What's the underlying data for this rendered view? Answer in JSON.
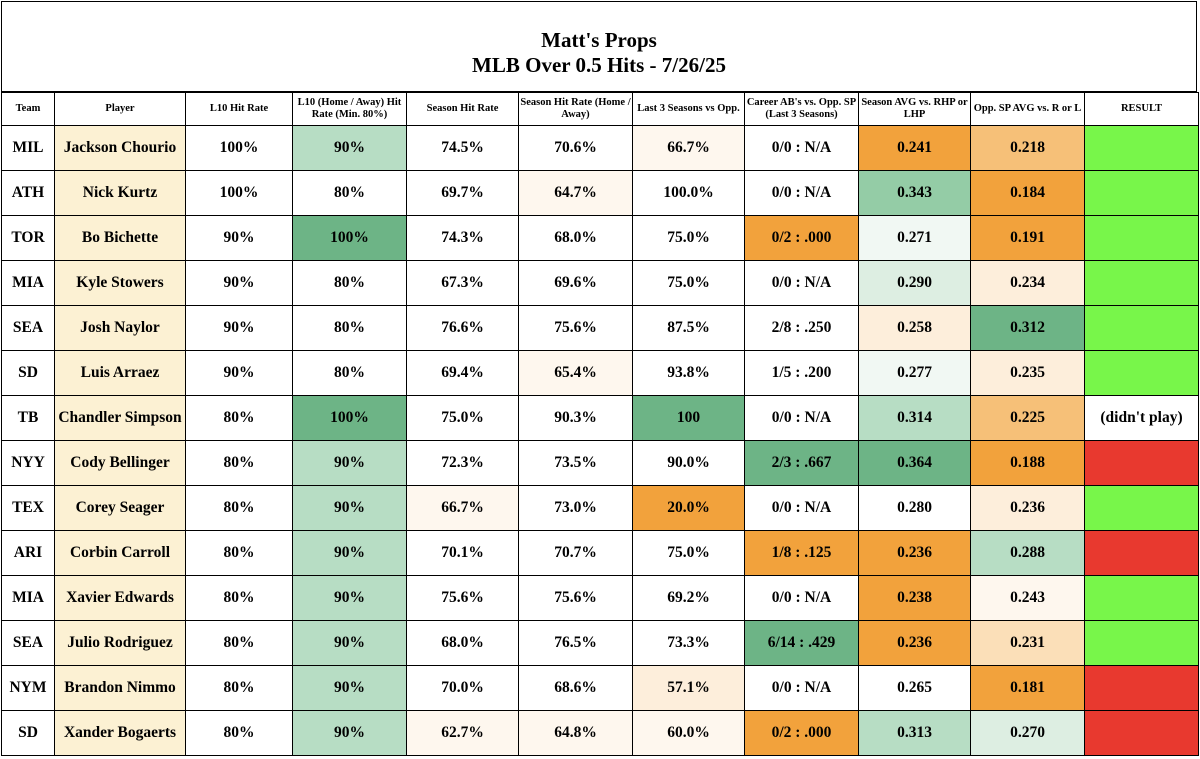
{
  "title": "Matt's Props",
  "subtitle": "MLB Over 0.5 Hits - 7/26/25",
  "columns": [
    "Team",
    "Player",
    "L10 Hit Rate",
    "L10 (Home / Away) Hit Rate (Min. 80%)",
    "Season Hit Rate",
    "Season Hit Rate (Home / Away)",
    "Last 3 Seasons vs Opp.",
    "Career AB's vs. Opp. SP (Last 3 Seasons)",
    "Season AVG vs. RHP or LHP",
    "Opp. SP AVG vs. R or L",
    "RESULT"
  ],
  "colors": {
    "player_bg": "#fcf1d3",
    "hit": "#78f64a",
    "miss": "#e8392f",
    "green_dark": "#6db486",
    "green_mid": "#94cca6",
    "green_light": "#b7ddc4",
    "green_pale": "#ddeee2",
    "green_faint": "#f1f8f3",
    "orange_dark": "#f2a23c",
    "orange_mid": "#f6c078",
    "orange_light": "#fbdfb8",
    "orange_pale": "#fdeedb",
    "orange_faint": "#fef7ee",
    "white": "#ffffff"
  },
  "rows": [
    {
      "team": "MIL",
      "player": "Jackson Chourio",
      "l10": "100%",
      "l10_ha": "90%",
      "season": "74.5%",
      "season_ha": "70.6%",
      "l3": "66.7%",
      "career": "0/0 : N/A",
      "avg_hand": "0.241",
      "opp_sp": "0.218",
      "result": "",
      "bg": [
        "white",
        "player",
        "white",
        "green_light",
        "white",
        "white",
        "orange_faint",
        "white",
        "orange_dark",
        "orange_mid",
        "hit"
      ]
    },
    {
      "team": "ATH",
      "player": "Nick Kurtz",
      "l10": "100%",
      "l10_ha": "80%",
      "season": "69.7%",
      "season_ha": "64.7%",
      "l3": "100.0%",
      "career": "0/0 : N/A",
      "avg_hand": "0.343",
      "opp_sp": "0.184",
      "result": "",
      "bg": [
        "white",
        "player",
        "white",
        "white",
        "white",
        "orange_faint",
        "white",
        "white",
        "green_mid",
        "orange_dark",
        "hit"
      ]
    },
    {
      "team": "TOR",
      "player": "Bo Bichette",
      "l10": "90%",
      "l10_ha": "100%",
      "season": "74.3%",
      "season_ha": "68.0%",
      "l3": "75.0%",
      "career": "0/2 : .000",
      "avg_hand": "0.271",
      "opp_sp": "0.191",
      "result": "",
      "bg": [
        "white",
        "player",
        "white",
        "green_dark",
        "white",
        "white",
        "white",
        "orange_dark",
        "green_faint",
        "orange_dark",
        "hit"
      ]
    },
    {
      "team": "MIA",
      "player": "Kyle Stowers",
      "l10": "90%",
      "l10_ha": "80%",
      "season": "67.3%",
      "season_ha": "69.6%",
      "l3": "75.0%",
      "career": "0/0 : N/A",
      "avg_hand": "0.290",
      "opp_sp": "0.234",
      "result": "",
      "bg": [
        "white",
        "player",
        "white",
        "white",
        "white",
        "white",
        "white",
        "white",
        "green_pale",
        "orange_pale",
        "hit"
      ]
    },
    {
      "team": "SEA",
      "player": "Josh Naylor",
      "l10": "90%",
      "l10_ha": "80%",
      "season": "76.6%",
      "season_ha": "75.6%",
      "l3": "87.5%",
      "career": "2/8 : .250",
      "avg_hand": "0.258",
      "opp_sp": "0.312",
      "result": "",
      "bg": [
        "white",
        "player",
        "white",
        "white",
        "white",
        "white",
        "white",
        "white",
        "orange_pale",
        "green_dark",
        "hit"
      ]
    },
    {
      "team": "SD",
      "player": "Luis Arraez",
      "l10": "90%",
      "l10_ha": "80%",
      "season": "69.4%",
      "season_ha": "65.4%",
      "l3": "93.8%",
      "career": "1/5 : .200",
      "avg_hand": "0.277",
      "opp_sp": "0.235",
      "result": "",
      "bg": [
        "white",
        "player",
        "white",
        "white",
        "white",
        "orange_faint",
        "white",
        "white",
        "green_faint",
        "orange_pale",
        "hit"
      ]
    },
    {
      "team": "TB",
      "player": "Chandler Simpson",
      "l10": "80%",
      "l10_ha": "100%",
      "season": "75.0%",
      "season_ha": "90.3%",
      "l3": "100",
      "career": "0/0 : N/A",
      "avg_hand": "0.314",
      "opp_sp": "0.225",
      "result": "(didn't play)",
      "bg": [
        "white",
        "player",
        "white",
        "green_dark",
        "white",
        "white",
        "green_dark",
        "white",
        "green_light",
        "orange_mid",
        "white"
      ]
    },
    {
      "team": "NYY",
      "player": "Cody Bellinger",
      "l10": "80%",
      "l10_ha": "90%",
      "season": "72.3%",
      "season_ha": "73.5%",
      "l3": "90.0%",
      "career": "2/3 : .667",
      "avg_hand": "0.364",
      "opp_sp": "0.188",
      "result": "",
      "bg": [
        "white",
        "player",
        "white",
        "green_light",
        "white",
        "white",
        "white",
        "green_dark",
        "green_dark",
        "orange_dark",
        "miss"
      ]
    },
    {
      "team": "TEX",
      "player": "Corey Seager",
      "l10": "80%",
      "l10_ha": "90%",
      "season": "66.7%",
      "season_ha": "73.0%",
      "l3": "20.0%",
      "career": "0/0 : N/A",
      "avg_hand": "0.280",
      "opp_sp": "0.236",
      "result": "",
      "bg": [
        "white",
        "player",
        "white",
        "green_light",
        "orange_faint",
        "white",
        "orange_dark",
        "white",
        "white",
        "orange_pale",
        "hit"
      ]
    },
    {
      "team": "ARI",
      "player": "Corbin Carroll",
      "l10": "80%",
      "l10_ha": "90%",
      "season": "70.1%",
      "season_ha": "70.7%",
      "l3": "75.0%",
      "career": "1/8 : .125",
      "avg_hand": "0.236",
      "opp_sp": "0.288",
      "result": "",
      "bg": [
        "white",
        "player",
        "white",
        "green_light",
        "white",
        "white",
        "white",
        "orange_dark",
        "orange_dark",
        "green_light",
        "miss"
      ]
    },
    {
      "team": "MIA",
      "player": "Xavier Edwards",
      "l10": "80%",
      "l10_ha": "90%",
      "season": "75.6%",
      "season_ha": "75.6%",
      "l3": "69.2%",
      "career": "0/0 : N/A",
      "avg_hand": "0.238",
      "opp_sp": "0.243",
      "result": "",
      "bg": [
        "white",
        "player",
        "white",
        "green_light",
        "white",
        "white",
        "white",
        "white",
        "orange_dark",
        "orange_faint",
        "hit"
      ]
    },
    {
      "team": "SEA",
      "player": "Julio Rodriguez",
      "l10": "80%",
      "l10_ha": "90%",
      "season": "68.0%",
      "season_ha": "76.5%",
      "l3": "73.3%",
      "career": "6/14 : .429",
      "avg_hand": "0.236",
      "opp_sp": "0.231",
      "result": "",
      "bg": [
        "white",
        "player",
        "white",
        "green_light",
        "white",
        "white",
        "white",
        "green_dark",
        "orange_dark",
        "orange_light",
        "hit"
      ]
    },
    {
      "team": "NYM",
      "player": "Brandon Nimmo",
      "l10": "80%",
      "l10_ha": "90%",
      "season": "70.0%",
      "season_ha": "68.6%",
      "l3": "57.1%",
      "career": "0/0 : N/A",
      "avg_hand": "0.265",
      "opp_sp": "0.181",
      "result": "",
      "bg": [
        "white",
        "player",
        "white",
        "green_light",
        "white",
        "white",
        "orange_pale",
        "white",
        "white",
        "orange_dark",
        "miss"
      ]
    },
    {
      "team": "SD",
      "player": "Xander Bogaerts",
      "l10": "80%",
      "l10_ha": "90%",
      "season": "62.7%",
      "season_ha": "64.8%",
      "l3": "60.0%",
      "career": "0/2 : .000",
      "avg_hand": "0.313",
      "opp_sp": "0.270",
      "result": "",
      "bg": [
        "white",
        "player",
        "white",
        "green_light",
        "orange_faint",
        "orange_faint",
        "orange_faint",
        "orange_dark",
        "green_light",
        "green_pale",
        "miss"
      ]
    }
  ]
}
